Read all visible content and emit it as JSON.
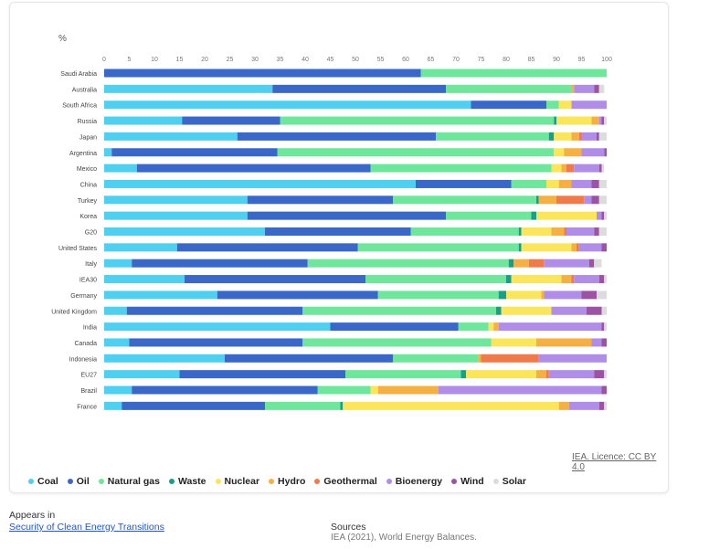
{
  "unit_label": "%",
  "licence": "IEA. Licence: CC BY 4.0",
  "appears_in": {
    "label": "Appears in",
    "link": "Security of Clean Energy Transitions"
  },
  "sources": {
    "label": "Sources",
    "text": "IEA (2021), World Energy Balances."
  },
  "colors": {
    "Coal": "#4fd0f0",
    "Oil": "#3a68c8",
    "Natural gas": "#6ee69b",
    "Waste": "#199f86",
    "Nuclear": "#fbe55a",
    "Hydro": "#f5b043",
    "Geothermal": "#ef7b4a",
    "Bioenergy": "#b08ee8",
    "Wind": "#9c53a4",
    "Solar": "#dcdcdc"
  },
  "chart_data": {
    "type": "bar",
    "orientation": "horizontal",
    "stacked": true,
    "title": "",
    "xlabel": "%",
    "ylabel": "",
    "xlim": [
      0,
      100
    ],
    "xticks": [
      0,
      5,
      10,
      15,
      20,
      25,
      30,
      35,
      40,
      45,
      50,
      55,
      60,
      65,
      70,
      75,
      80,
      85,
      90,
      95,
      100
    ],
    "categories": [
      "Saudi Arabia",
      "Australia",
      "South Africa",
      "Russia",
      "Japan",
      "Argentina",
      "Mexico",
      "China",
      "Turkey",
      "Korea",
      "G20",
      "United States",
      "Italy",
      "IEA30",
      "Germany",
      "United Kingdom",
      "India",
      "Canada",
      "Indonesia",
      "EU27",
      "Brazil",
      "France"
    ],
    "series": [
      {
        "name": "Coal",
        "values": [
          0,
          33.5,
          73,
          15.5,
          26.5,
          1.5,
          6.5,
          62,
          28.5,
          28.5,
          32,
          14.5,
          5.5,
          16,
          22.5,
          4.5,
          45,
          5,
          24,
          15,
          5.5,
          3.5
        ]
      },
      {
        "name": "Oil",
        "values": [
          63,
          34.5,
          15,
          19.5,
          39.5,
          33,
          46.5,
          19,
          29,
          39.5,
          29,
          36,
          35,
          36,
          32,
          35,
          25.5,
          34.5,
          33.5,
          33,
          37,
          28.5
        ]
      },
      {
        "name": "Natural gas",
        "values": [
          37,
          25,
          2.5,
          54.5,
          22.5,
          55,
          36,
          7,
          28.5,
          17,
          21.5,
          32,
          40,
          28,
          24,
          38.5,
          6,
          37.5,
          17,
          23,
          10.5,
          15
        ]
      },
      {
        "name": "Waste",
        "values": [
          0,
          0,
          0,
          0.5,
          1,
          0,
          0,
          0,
          0.5,
          1,
          0.5,
          0.5,
          1,
          1,
          1.5,
          1,
          0,
          0,
          0,
          1,
          0,
          0.5
        ]
      },
      {
        "name": "Nuclear",
        "values": [
          0,
          0,
          2.5,
          7,
          3.5,
          2,
          2,
          2.5,
          0,
          12,
          6,
          10,
          0,
          10,
          7,
          10,
          1,
          9,
          0,
          14,
          1.5,
          43
        ]
      },
      {
        "name": "Hydro",
        "values": [
          0,
          0.5,
          0,
          1.5,
          1.5,
          3.5,
          1,
          2.5,
          3.5,
          0,
          2.5,
          1,
          3,
          2,
          0.5,
          0,
          1,
          11,
          0.5,
          2,
          12,
          2
        ]
      },
      {
        "name": "Geothermal",
        "values": [
          0,
          0,
          0,
          0,
          0.5,
          0,
          1.5,
          0,
          5.5,
          0,
          0.5,
          0.5,
          3,
          0.5,
          0,
          0,
          0,
          0,
          11.5,
          0.5,
          0,
          0
        ]
      },
      {
        "name": "Bioenergy",
        "values": [
          0,
          4,
          7,
          0.5,
          3,
          4.5,
          5,
          4,
          1.5,
          1,
          5.5,
          4.5,
          9,
          5,
          7.5,
          7,
          20.5,
          2,
          13.5,
          9,
          32.5,
          6
        ]
      },
      {
        "name": "Wind",
        "values": [
          0,
          1,
          0,
          0.5,
          0.5,
          0.5,
          0.5,
          1.5,
          1.5,
          0.5,
          1,
          1,
          1,
          1,
          3,
          3,
          0.5,
          1,
          0,
          2,
          1,
          1
        ]
      },
      {
        "name": "Solar",
        "values": [
          0,
          1,
          0,
          0.5,
          1.5,
          0,
          0.5,
          1.5,
          1.5,
          0.5,
          1.5,
          0,
          1.5,
          0.5,
          2,
          1,
          0.5,
          0,
          0,
          0.5,
          0,
          0.5
        ]
      }
    ],
    "legend_position": "bottom-left"
  }
}
